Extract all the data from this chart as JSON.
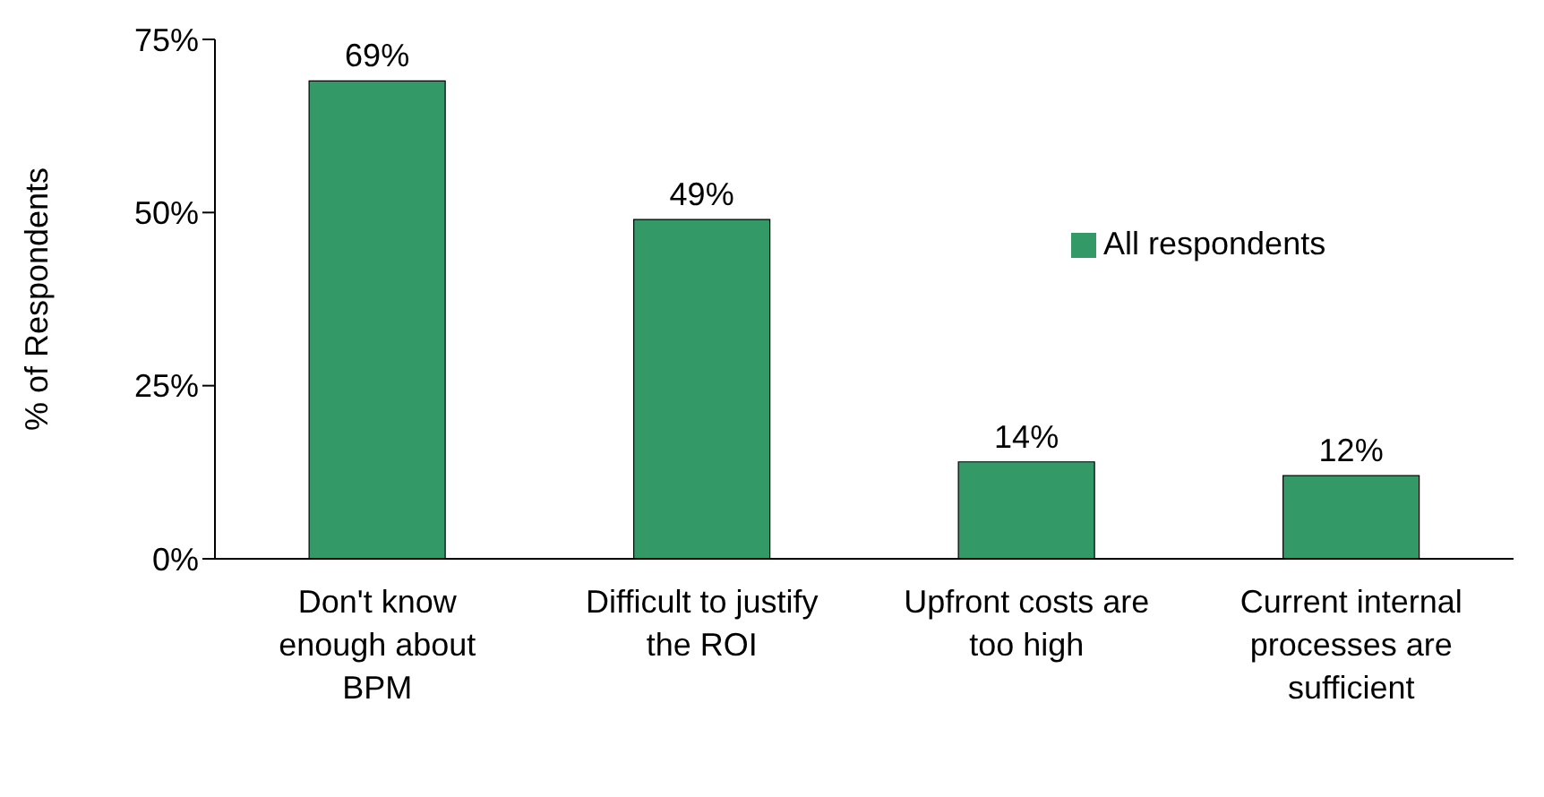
{
  "chart_data": {
    "type": "bar",
    "ylabel": "% of Respondents",
    "categories": [
      "Don't know enough about BPM",
      "Difficult to justify the ROI",
      "Upfront costs are too high",
      "Current internal processes are sufficient"
    ],
    "series": [
      {
        "name": "All respondents",
        "color": "#339966",
        "values": [
          69,
          49,
          14,
          12
        ],
        "value_labels": [
          "69%",
          "49%",
          "14%",
          "12%"
        ]
      }
    ],
    "ylim": [
      0,
      75
    ],
    "yticks": [
      {
        "value": 0,
        "label": "0%"
      },
      {
        "value": 25,
        "label": "25%"
      },
      {
        "value": 50,
        "label": "50%"
      },
      {
        "value": 75,
        "label": "75%"
      }
    ],
    "grid": false,
    "legend": "right"
  }
}
